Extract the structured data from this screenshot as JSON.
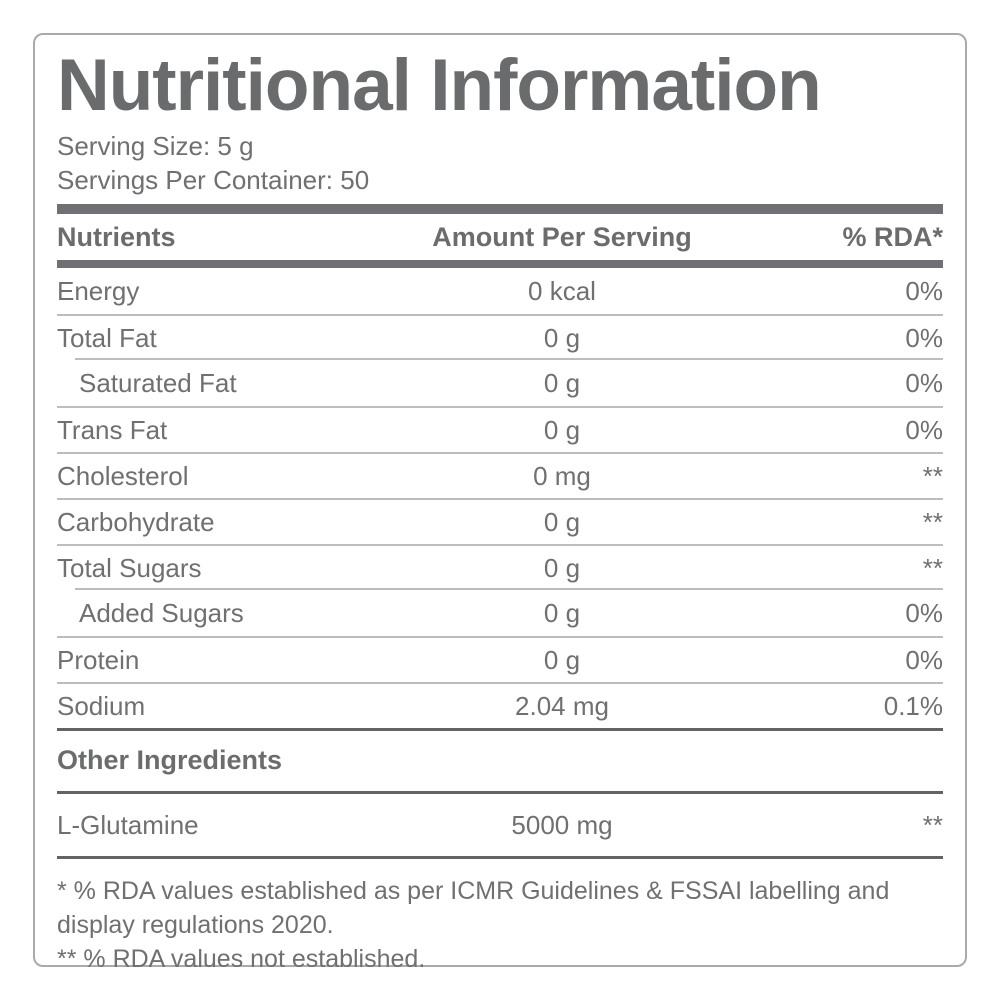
{
  "colors": {
    "text_gray": "#6f7072",
    "title_gray": "#6a6b6d",
    "thick_bar": "#707174",
    "thin_line": "#bcbdbf",
    "section_line": "#626366",
    "outer_border": "#a9aaac"
  },
  "label": {
    "title": "Nutritional Information",
    "serving_size": "Serving Size: 5 g",
    "servings_per_container": "Servings Per Container: 50"
  },
  "table": {
    "columns": {
      "nutrients": "Nutrients",
      "amount": "Amount Per Serving",
      "rda": "% RDA*"
    },
    "rows": [
      {
        "name": "Energy",
        "amount": "0 kcal",
        "rda": "0%",
        "indent": false
      },
      {
        "name": "Total Fat",
        "amount": "0 g",
        "rda": "0%",
        "indent": false
      },
      {
        "name": "Saturated Fat",
        "amount": "0 g",
        "rda": "0%",
        "indent": true
      },
      {
        "name": "Trans Fat",
        "amount": "0 g",
        "rda": "0%",
        "indent": false
      },
      {
        "name": "Cholesterol",
        "amount": "0 mg",
        "rda": "**",
        "indent": false
      },
      {
        "name": "Carbohydrate",
        "amount": "0 g",
        "rda": "**",
        "indent": false
      },
      {
        "name": "Total Sugars",
        "amount": "0 g",
        "rda": "**",
        "indent": false
      },
      {
        "name": "Added Sugars",
        "amount": "0 g",
        "rda": "0%",
        "indent": true
      },
      {
        "name": "Protein",
        "amount": "0 g",
        "rda": "0%",
        "indent": false
      },
      {
        "name": "Sodium",
        "amount": "2.04 mg",
        "rda": "0.1%",
        "indent": false
      }
    ]
  },
  "other_ingredients": {
    "heading": "Other Ingredients",
    "rows": [
      {
        "name": "L-Glutamine",
        "amount": "5000 mg",
        "rda": "**"
      }
    ]
  },
  "footnotes": {
    "lines": [
      "* % RDA values established as per ICMR Guidelines & FSSAI labelling and",
      "display regulations 2020.",
      "** % RDA values not established."
    ]
  }
}
